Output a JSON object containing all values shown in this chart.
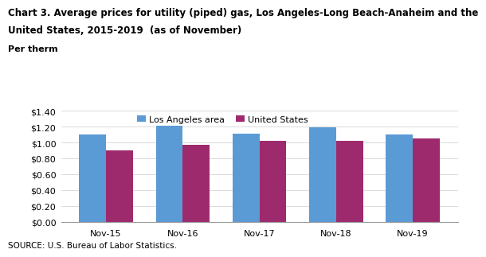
{
  "title_line1": "Chart 3. Average prices for utility (piped) gas, Los Angeles-Long Beach-Anaheim and the",
  "title_line2": "United States, 2015-2019  (as of November)",
  "per_therm": "Per therm",
  "categories": [
    "Nov-15",
    "Nov-16",
    "Nov-17",
    "Nov-18",
    "Nov-19"
  ],
  "la_values": [
    1.1,
    1.21,
    1.11,
    1.19,
    1.1
  ],
  "us_values": [
    0.9,
    0.97,
    1.02,
    1.02,
    1.05
  ],
  "la_color": "#5B9BD5",
  "us_color": "#9E2A6E",
  "la_label": "Los Angeles area",
  "us_label": "United States",
  "ylim": [
    0.0,
    1.4
  ],
  "yticks": [
    0.0,
    0.2,
    0.4,
    0.6,
    0.8,
    1.0,
    1.2,
    1.4
  ],
  "source_text": "SOURCE: U.S. Bureau of Labor Statistics.",
  "background_color": "#ffffff",
  "bar_width": 0.35,
  "title_fontsize": 8.5,
  "tick_fontsize": 8,
  "source_fontsize": 7.5
}
